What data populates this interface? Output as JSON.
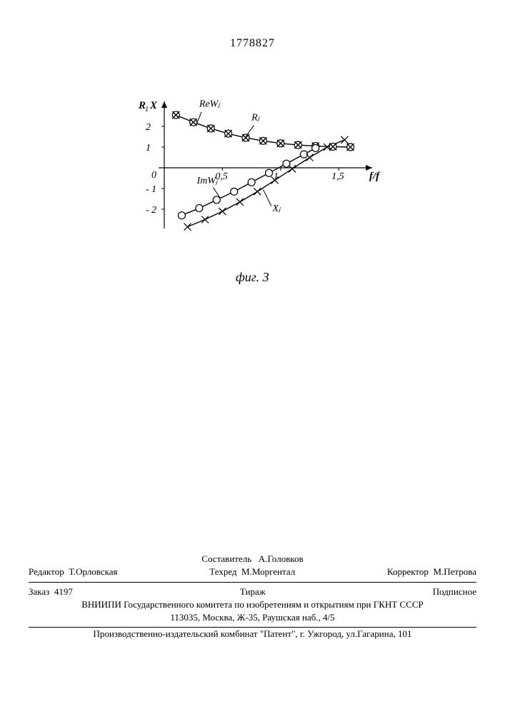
{
  "document_number": "1778827",
  "figure_caption": "фиг. 3",
  "chart": {
    "type": "line",
    "background_color": "#ffffff",
    "axis_color": "#000000",
    "line_width": 1.4,
    "y_label": "R₁X",
    "x_label": "f/f",
    "x_ticks": [
      0.5,
      1,
      1.5
    ],
    "x_tick_labels": [
      "0,5",
      "1",
      "1,5"
    ],
    "y_ticks": [
      -2,
      -1,
      0,
      1,
      2
    ],
    "xlim": [
      0,
      1.75
    ],
    "ylim": [
      -3,
      3
    ],
    "marker_size": 5,
    "series": [
      {
        "name": "ReWj",
        "label": "ReWⱼ",
        "marker": "circle-x",
        "color": "#000000",
        "x": [
          0.1,
          0.25,
          0.4,
          0.55,
          0.7,
          0.85,
          1.0,
          1.15,
          1.3,
          1.45,
          1.6
        ],
        "y": [
          2.55,
          2.2,
          1.9,
          1.65,
          1.45,
          1.3,
          1.18,
          1.1,
          1.05,
          1.02,
          1.0
        ]
      },
      {
        "name": "Rj",
        "label": "Rⱼ",
        "marker": "x",
        "color": "#000000",
        "x": [
          0.1,
          0.25,
          0.4,
          0.55,
          0.7,
          0.85,
          1.0,
          1.15,
          1.3,
          1.45,
          1.6
        ],
        "y": [
          2.55,
          2.2,
          1.9,
          1.65,
          1.45,
          1.3,
          1.18,
          1.1,
          1.05,
          1.02,
          1.0
        ]
      },
      {
        "name": "ImWj",
        "label": "ImWⱼ",
        "marker": "circle",
        "color": "#000000",
        "x": [
          0.15,
          0.3,
          0.45,
          0.6,
          0.75,
          0.9,
          1.05,
          1.2,
          1.3
        ],
        "y": [
          -2.3,
          -1.95,
          -1.55,
          -1.15,
          -0.7,
          -0.25,
          0.2,
          0.65,
          0.95
        ]
      },
      {
        "name": "Xj",
        "label": "Xⱼ",
        "marker": "x",
        "color": "#000000",
        "x": [
          0.2,
          0.35,
          0.5,
          0.65,
          0.8,
          0.95,
          1.1,
          1.25,
          1.4,
          1.55
        ],
        "y": [
          -2.85,
          -2.5,
          -2.1,
          -1.65,
          -1.15,
          -0.6,
          -0.05,
          0.5,
          1.0,
          1.35
        ]
      }
    ],
    "series_label_positions": {
      "ReWj": {
        "fx": 0.3,
        "fy": 2.95
      },
      "Rj": {
        "fx": 0.75,
        "fy": 2.3
      },
      "ImWj": {
        "fx": 0.28,
        "fy": -0.75
      },
      "Xj": {
        "fx": 0.93,
        "fy": -2.1
      }
    }
  },
  "credits": {
    "compiler_label": "Составитель",
    "compiler_name": "А.Головков",
    "editor_label": "Редактор",
    "editor_name": "Т.Орловская",
    "techred_label": "Техред",
    "techred_name": "М.Моргентал",
    "corrector_label": "Корректор",
    "corrector_name": "М.Петрова"
  },
  "order": {
    "order_label": "Заказ",
    "order_number": "4197",
    "tirazh_label": "Тираж",
    "subscription_label": "Подписное"
  },
  "institution_line1": "ВНИИПИ Государственного комитета по изобретениям и открытиям при ГКНТ СССР",
  "institution_line2": "113035, Москва, Ж-35, Раушская наб., 4/5",
  "printer_line": "Производственно-издательский комбинат \"Патент\", г. Ужгород, ул.Гагарина, 101"
}
